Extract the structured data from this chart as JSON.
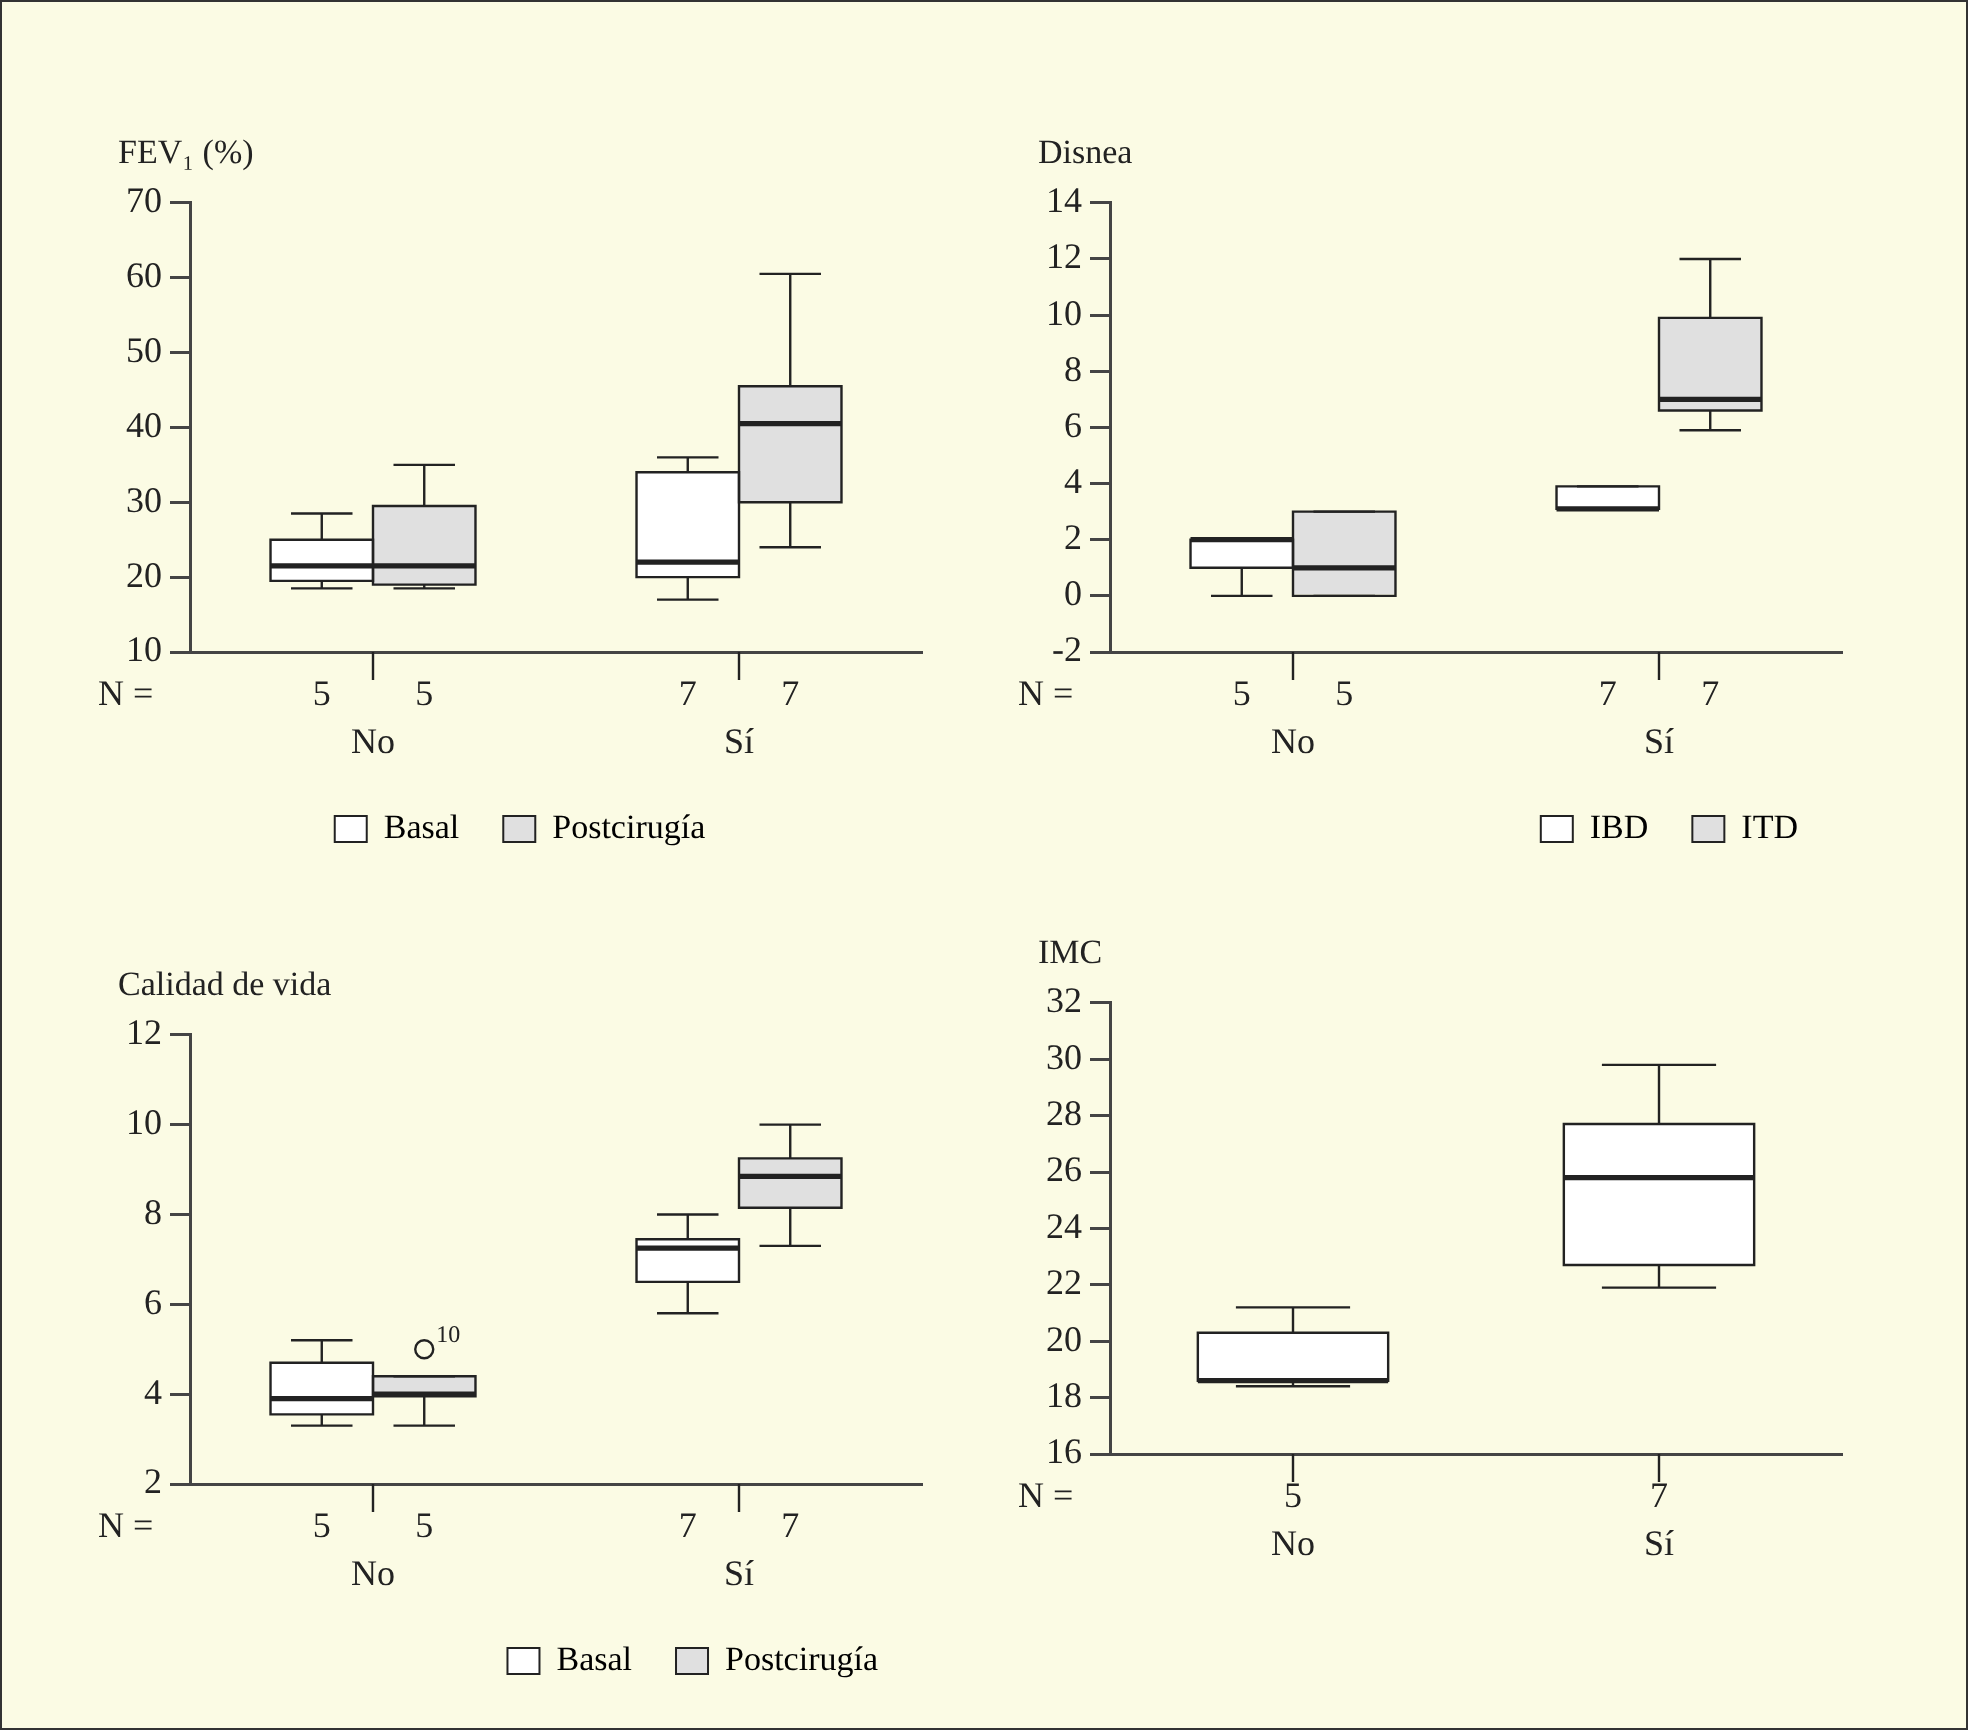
{
  "chart_data": [
    {
      "type": "box",
      "title": "FEV₁ (%)",
      "categories": [
        "No",
        "Sí"
      ],
      "ylim": [
        10,
        70
      ],
      "yticks": [
        10,
        20,
        30,
        40,
        50,
        60,
        70
      ],
      "legend": "bottom",
      "annotations": [
        "N ="
      ],
      "series": [
        {
          "name": "Basal",
          "color": "#ffffff",
          "value_labels": [
            "5",
            "7"
          ],
          "boxes": [
            {
              "low": 18.5,
              "q1": 19.5,
              "median": 21.5,
              "q3": 25,
              "high": 28.5
            },
            {
              "low": 17,
              "q1": 20,
              "median": 22,
              "q3": 34,
              "high": 36
            }
          ]
        },
        {
          "name": "Postcirugía",
          "color": "#e0e0e0",
          "value_labels": [
            "5",
            "7"
          ],
          "boxes": [
            {
              "low": 18.5,
              "q1": 19,
              "median": 21.5,
              "q3": 29.5,
              "high": 35
            },
            {
              "low": 24,
              "q1": 30,
              "median": 40.5,
              "q3": 45.5,
              "high": 60.5
            }
          ]
        }
      ]
    },
    {
      "type": "box",
      "title": "Disnea",
      "categories": [
        "No",
        "Sí"
      ],
      "ylim": [
        -2,
        14
      ],
      "yticks": [
        -2,
        0,
        2,
        4,
        6,
        8,
        10,
        12,
        14
      ],
      "legend": "bottom right",
      "annotations": [
        "N ="
      ],
      "series": [
        {
          "name": "IBD",
          "color": "#ffffff",
          "value_labels": [
            "5",
            "7"
          ],
          "boxes": [
            {
              "low": 0,
              "q1": 1,
              "median": 2,
              "q3": 2,
              "high": 2
            },
            {
              "low": 3.1,
              "q1": 3.1,
              "median": 3.1,
              "q3": 3.9,
              "high": 3.9
            }
          ]
        },
        {
          "name": "ITD",
          "color": "#e0e0e0",
          "value_labels": [
            "5",
            "7"
          ],
          "boxes": [
            {
              "low": 0,
              "q1": 0,
              "median": 1,
              "q3": 3,
              "high": 3
            },
            {
              "low": 5.9,
              "q1": 6.6,
              "median": 7,
              "q3": 9.9,
              "high": 12
            }
          ]
        }
      ]
    },
    {
      "type": "box",
      "title": "Calidad de vida",
      "categories": [
        "No",
        "Sí"
      ],
      "ylim": [
        2,
        12
      ],
      "yticks": [
        2,
        4,
        6,
        8,
        10,
        12
      ],
      "legend": "bottom right",
      "annotations": [
        "N =",
        "10"
      ],
      "series": [
        {
          "name": "Basal",
          "color": "#ffffff",
          "value_labels": [
            "5",
            "7"
          ],
          "boxes": [
            {
              "low": 3.3,
              "q1": 3.55,
              "median": 3.9,
              "q3": 4.7,
              "high": 5.2
            },
            {
              "low": 5.8,
              "q1": 6.5,
              "median": 7.25,
              "q3": 7.45,
              "high": 8
            }
          ]
        },
        {
          "name": "Postcirugía",
          "color": "#e0e0e0",
          "value_labels": [
            "5",
            "7"
          ],
          "boxes": [
            {
              "low": 3.3,
              "q1": 3.95,
              "median": 4,
              "q3": 4.4,
              "high": 4.4,
              "outliers": [
                5
              ]
            },
            {
              "low": 7.3,
              "q1": 8.15,
              "median": 8.85,
              "q3": 9.25,
              "high": 10
            }
          ]
        }
      ]
    },
    {
      "type": "box",
      "title": "IMC",
      "categories": [
        "No",
        "Sí"
      ],
      "ylim": [
        16,
        32
      ],
      "yticks": [
        16,
        18,
        20,
        22,
        24,
        26,
        28,
        30,
        32
      ],
      "annotations": [
        "N ="
      ],
      "series": [
        {
          "color": "#ffffff",
          "value_labels": [
            "5",
            "7"
          ],
          "boxes": [
            {
              "low": 18.4,
              "q1": 18.6,
              "median": 18.6,
              "q3": 20.3,
              "high": 21.2
            },
            {
              "low": 21.9,
              "q1": 22.7,
              "median": 25.8,
              "q3": 27.7,
              "high": 29.8
            }
          ]
        }
      ]
    }
  ]
}
